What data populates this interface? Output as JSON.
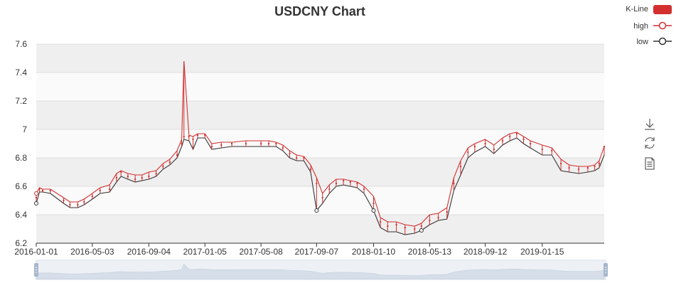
{
  "chart_data": {
    "type": "candlestick",
    "title": "USDCNY Chart",
    "xlabel": "",
    "ylabel": "",
    "ylim": [
      6.2,
      7.6
    ],
    "yticks": [
      "6.2",
      "6.4",
      "6.6",
      "6.8",
      "7",
      "7.2",
      "7.4",
      "7.6"
    ],
    "xrange": [
      "2016-01-01",
      "2019-05-31"
    ],
    "xticks": [
      "2016-01-01",
      "2016-05-03",
      "2016-09-04",
      "2017-01-05",
      "2017-05-08",
      "2017-09-07",
      "2018-01-10",
      "2018-05-13",
      "2018-09-12",
      "2019-01-15"
    ],
    "grid": "alternating horizontal bands",
    "legend_position": "top-right",
    "series": [
      {
        "name": "K-Line",
        "kind": "candlestick",
        "color": "#d32f2f",
        "x": [
          "2016-01-01",
          "2016-01-08",
          "2016-01-15",
          "2016-02-01",
          "2016-03-01",
          "2016-03-15",
          "2016-04-01",
          "2016-04-15",
          "2016-05-03",
          "2016-05-20",
          "2016-06-10",
          "2016-06-25",
          "2016-07-05",
          "2016-07-20",
          "2016-08-05",
          "2016-08-20",
          "2016-09-04",
          "2016-09-20",
          "2016-10-05",
          "2016-10-20",
          "2016-11-05",
          "2016-11-15",
          "2016-11-20",
          "2016-12-01",
          "2016-12-10",
          "2016-12-20",
          "2017-01-05",
          "2017-01-20",
          "2017-02-10",
          "2017-03-05",
          "2017-04-05",
          "2017-05-08",
          "2017-05-25",
          "2017-06-10",
          "2017-06-25",
          "2017-07-10",
          "2017-07-25",
          "2017-08-10",
          "2017-08-25",
          "2017-09-07",
          "2017-09-20",
          "2017-10-05",
          "2017-10-20",
          "2017-11-05",
          "2017-11-20",
          "2017-12-05",
          "2017-12-20",
          "2018-01-10",
          "2018-01-25",
          "2018-02-10",
          "2018-03-01",
          "2018-03-20",
          "2018-04-10",
          "2018-04-25",
          "2018-05-13",
          "2018-06-01",
          "2018-06-20",
          "2018-07-05",
          "2018-07-20",
          "2018-08-05",
          "2018-08-20",
          "2018-09-12",
          "2018-10-01",
          "2018-10-20",
          "2018-11-05",
          "2018-11-20",
          "2018-12-05",
          "2018-12-20",
          "2019-01-15",
          "2019-02-05",
          "2019-02-25",
          "2019-03-15",
          "2019-04-05",
          "2019-04-25",
          "2019-05-10",
          "2019-05-20",
          "2019-05-31"
        ],
        "close": [
          6.52,
          6.58,
          6.57,
          6.57,
          6.5,
          6.47,
          6.47,
          6.49,
          6.53,
          6.57,
          6.58,
          6.66,
          6.7,
          6.67,
          6.65,
          6.66,
          6.67,
          6.69,
          6.74,
          6.77,
          6.82,
          6.9,
          6.95,
          6.95,
          6.93,
          6.96,
          6.96,
          6.88,
          6.89,
          6.9,
          6.9,
          6.9,
          6.9,
          6.9,
          6.87,
          6.83,
          6.8,
          6.8,
          6.72,
          6.62,
          6.52,
          6.58,
          6.62,
          6.64,
          6.63,
          6.62,
          6.58,
          6.48,
          6.35,
          6.32,
          6.33,
          6.31,
          6.3,
          6.32,
          6.36,
          6.38,
          6.42,
          6.62,
          6.74,
          6.84,
          6.88,
          6.9,
          6.86,
          6.92,
          6.95,
          6.97,
          6.93,
          6.9,
          6.86,
          6.85,
          6.76,
          6.73,
          6.72,
          6.73,
          6.74,
          6.76,
          6.88
        ]
      },
      {
        "name": "high",
        "kind": "line",
        "color": "#d32f2f",
        "x": [
          "2016-01-01",
          "2016-01-08",
          "2016-01-15",
          "2016-02-01",
          "2016-03-01",
          "2016-03-15",
          "2016-04-01",
          "2016-04-15",
          "2016-05-03",
          "2016-05-20",
          "2016-06-10",
          "2016-06-25",
          "2016-07-05",
          "2016-07-20",
          "2016-08-05",
          "2016-08-20",
          "2016-09-04",
          "2016-09-20",
          "2016-10-05",
          "2016-10-20",
          "2016-11-05",
          "2016-11-15",
          "2016-11-20",
          "2016-12-01",
          "2016-12-10",
          "2016-12-20",
          "2017-01-05",
          "2017-01-20",
          "2017-02-10",
          "2017-03-05",
          "2017-04-05",
          "2017-05-08",
          "2017-05-25",
          "2017-06-10",
          "2017-06-25",
          "2017-07-10",
          "2017-07-25",
          "2017-08-10",
          "2017-08-25",
          "2017-09-07",
          "2017-09-20",
          "2017-10-05",
          "2017-10-20",
          "2017-11-05",
          "2017-11-20",
          "2017-12-05",
          "2017-12-20",
          "2018-01-10",
          "2018-01-25",
          "2018-02-10",
          "2018-03-01",
          "2018-03-20",
          "2018-04-10",
          "2018-04-25",
          "2018-05-13",
          "2018-06-01",
          "2018-06-20",
          "2018-07-05",
          "2018-07-20",
          "2018-08-05",
          "2018-08-20",
          "2018-09-12",
          "2018-10-01",
          "2018-10-20",
          "2018-11-05",
          "2018-11-20",
          "2018-12-05",
          "2018-12-20",
          "2019-01-15",
          "2019-02-05",
          "2019-02-25",
          "2019-03-15",
          "2019-04-05",
          "2019-04-25",
          "2019-05-10",
          "2019-05-20",
          "2019-05-31"
        ],
        "values": [
          6.55,
          6.59,
          6.58,
          6.58,
          6.52,
          6.49,
          6.49,
          6.51,
          6.55,
          6.59,
          6.61,
          6.69,
          6.71,
          6.69,
          6.68,
          6.68,
          6.7,
          6.71,
          6.76,
          6.79,
          6.85,
          6.93,
          7.48,
          6.96,
          6.95,
          6.97,
          6.97,
          6.9,
          6.91,
          6.91,
          6.92,
          6.92,
          6.92,
          6.91,
          6.89,
          6.85,
          6.82,
          6.81,
          6.75,
          6.66,
          6.55,
          6.61,
          6.65,
          6.65,
          6.64,
          6.63,
          6.6,
          6.53,
          6.38,
          6.35,
          6.35,
          6.33,
          6.32,
          6.34,
          6.4,
          6.41,
          6.45,
          6.66,
          6.78,
          6.87,
          6.9,
          6.93,
          6.89,
          6.94,
          6.97,
          6.98,
          6.95,
          6.92,
          6.89,
          6.87,
          6.79,
          6.75,
          6.74,
          6.74,
          6.75,
          6.78,
          6.88
        ]
      },
      {
        "name": "low",
        "kind": "line",
        "color": "#333333",
        "x": [
          "2016-01-01",
          "2016-01-08",
          "2016-01-15",
          "2016-02-01",
          "2016-03-01",
          "2016-03-15",
          "2016-04-01",
          "2016-04-15",
          "2016-05-03",
          "2016-05-20",
          "2016-06-10",
          "2016-06-25",
          "2016-07-05",
          "2016-07-20",
          "2016-08-05",
          "2016-08-20",
          "2016-09-04",
          "2016-09-20",
          "2016-10-05",
          "2016-10-20",
          "2016-11-05",
          "2016-11-15",
          "2016-11-20",
          "2016-12-01",
          "2016-12-10",
          "2016-12-20",
          "2017-01-05",
          "2017-01-20",
          "2017-02-10",
          "2017-03-05",
          "2017-04-05",
          "2017-05-08",
          "2017-05-25",
          "2017-06-10",
          "2017-06-25",
          "2017-07-10",
          "2017-07-25",
          "2017-08-10",
          "2017-08-25",
          "2017-09-07",
          "2017-09-20",
          "2017-10-05",
          "2017-10-20",
          "2017-11-05",
          "2017-11-20",
          "2017-12-05",
          "2017-12-20",
          "2018-01-10",
          "2018-01-25",
          "2018-02-10",
          "2018-03-01",
          "2018-03-20",
          "2018-04-10",
          "2018-04-25",
          "2018-05-13",
          "2018-06-01",
          "2018-06-20",
          "2018-07-05",
          "2018-07-20",
          "2018-08-05",
          "2018-08-20",
          "2018-09-12",
          "2018-10-01",
          "2018-10-20",
          "2018-11-05",
          "2018-11-20",
          "2018-12-05",
          "2018-12-20",
          "2019-01-15",
          "2019-02-05",
          "2019-02-25",
          "2019-03-15",
          "2019-04-05",
          "2019-04-25",
          "2019-05-10",
          "2019-05-20",
          "2019-05-31"
        ],
        "values": [
          6.48,
          6.56,
          6.56,
          6.55,
          6.48,
          6.45,
          6.45,
          6.47,
          6.51,
          6.55,
          6.56,
          6.63,
          6.67,
          6.65,
          6.63,
          6.64,
          6.65,
          6.67,
          6.72,
          6.75,
          6.8,
          6.88,
          6.93,
          6.92,
          6.86,
          6.94,
          6.94,
          6.86,
          6.87,
          6.88,
          6.88,
          6.88,
          6.88,
          6.88,
          6.85,
          6.8,
          6.78,
          6.78,
          6.7,
          6.43,
          6.48,
          6.55,
          6.6,
          6.61,
          6.6,
          6.59,
          6.55,
          6.43,
          6.31,
          6.28,
          6.28,
          6.26,
          6.27,
          6.29,
          6.33,
          6.36,
          6.37,
          6.57,
          6.68,
          6.8,
          6.84,
          6.88,
          6.83,
          6.89,
          6.92,
          6.94,
          6.9,
          6.87,
          6.82,
          6.82,
          6.71,
          6.7,
          6.69,
          6.7,
          6.71,
          6.73,
          6.82
        ]
      }
    ]
  },
  "legend": [
    {
      "label": "K-Line",
      "kind": "box"
    },
    {
      "label": "high",
      "kind": "line-circle"
    },
    {
      "label": "low",
      "kind": "line-circle"
    }
  ],
  "toolbox": [
    {
      "name": "save-as-image",
      "icon": "download-icon"
    },
    {
      "name": "restore",
      "icon": "refresh-icon"
    },
    {
      "name": "data-view",
      "icon": "document-icon"
    }
  ],
  "colors": {
    "up": "#d32f2f",
    "low_line": "#333333",
    "band_dark": "#efefef",
    "band_light": "#fafafa",
    "axis": "#333333",
    "datazoom_fill": "#dfe5ee",
    "datazoom_handle": "#a7b7cc"
  }
}
